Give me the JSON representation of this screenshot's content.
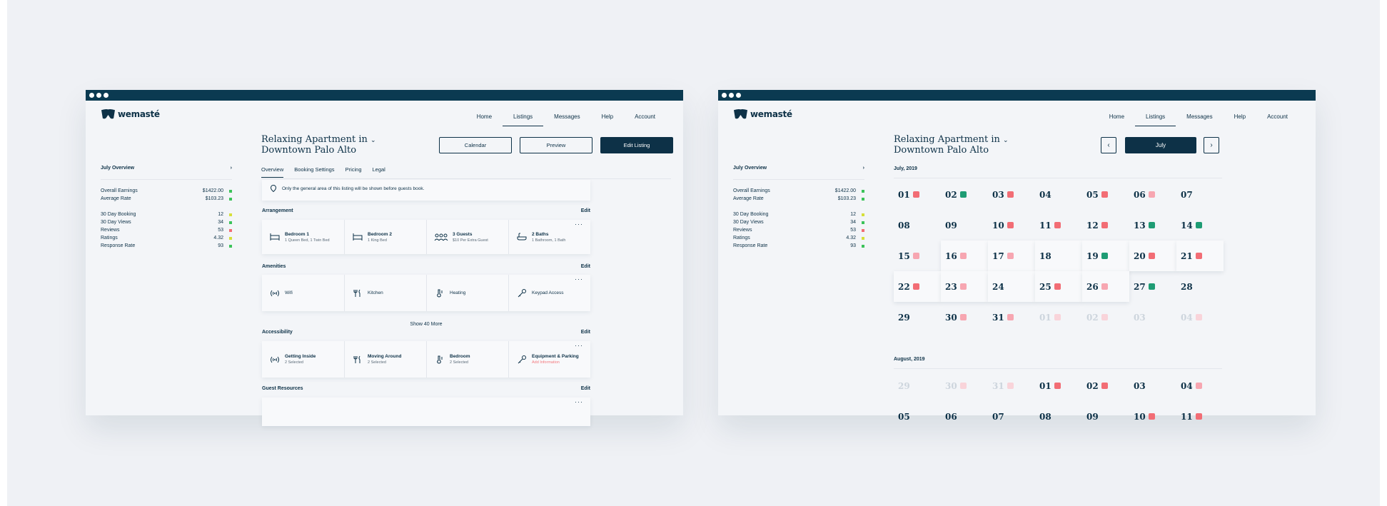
{
  "colors": {
    "navy": "#0d3147",
    "green": "#1e9c74",
    "red": "#f26d75",
    "pink": "#f7a6b1"
  },
  "brand": {
    "name": "wemasté"
  },
  "nav": [
    "Home",
    "Listings",
    "Messages",
    "Help",
    "Account"
  ],
  "sidebar": {
    "overview_title": "July Overview",
    "earnings": [
      {
        "label": "Overall Earnings",
        "value": "$1422.00"
      },
      {
        "label": "Average Rate",
        "value": "$103.23"
      }
    ],
    "stats": [
      {
        "label": "30 Day Booking",
        "value": "12",
        "icon": "calendar-icon",
        "status": "#d6df3a"
      },
      {
        "label": "30 Day Views",
        "value": "34",
        "icon": "eye-icon",
        "status": "#3cc35a"
      },
      {
        "label": "Reviews",
        "value": "53",
        "icon": "chat-icon",
        "status": "#f26d75"
      },
      {
        "label": "Ratings",
        "value": "4.32",
        "icon": "star-icon",
        "status": "#d6df3a"
      },
      {
        "label": "Response Rate",
        "value": "93",
        "icon": "check-icon",
        "status": "#3cc35a"
      }
    ]
  },
  "listing": {
    "title_line1": "Relaxing Apartment in",
    "title_line2": "Downtown Palo Alto",
    "buttons": {
      "calendar": "Calendar",
      "preview": "Preview",
      "edit": "Edit Listing"
    },
    "tabs": [
      "Overview",
      "Booking Settings",
      "Pricing",
      "Legal"
    ],
    "address_note": "Only the general area of this listing will be shown before guests book.",
    "edit_label": "Edit",
    "arrangement": {
      "heading": "Arrangement",
      "items": [
        {
          "title": "Bedroom 1",
          "sub": "1 Queen Bed, 1 Twin Bed"
        },
        {
          "title": "Bedroom 2",
          "sub": "1 King Bed"
        },
        {
          "title": "3 Guests",
          "sub": "$10 Per Extra Guest"
        },
        {
          "title": "2 Baths",
          "sub": "1 Bathroom, 1 Bath"
        }
      ]
    },
    "amenities": {
      "heading": "Amenities",
      "items": [
        "Wifi",
        "Kitchen",
        "Heating",
        "Keypad Access"
      ],
      "show_more": "Show 40 More"
    },
    "accessibility": {
      "heading": "Accessibility",
      "items": [
        {
          "title": "Getting Inside",
          "sub": "2 Selected"
        },
        {
          "title": "Moving Around",
          "sub": "2 Selected"
        },
        {
          "title": "Bedroom",
          "sub": "2 Selected"
        },
        {
          "title": "Equipment & Parking",
          "sub": "Add Information"
        }
      ]
    },
    "guest_resources": {
      "heading": "Guest Resources"
    }
  },
  "calendar": {
    "month_button": "July",
    "prev_icon": "chevron-left-icon",
    "next_icon": "chevron-right-icon",
    "july_label": "July, 2019",
    "august_label": "August, 2019",
    "july_days": [
      {
        "d": "01",
        "b": "red"
      },
      {
        "d": "02",
        "b": "green"
      },
      {
        "d": "03",
        "b": "red"
      },
      {
        "d": "04",
        "b": ""
      },
      {
        "d": "05",
        "b": "red"
      },
      {
        "d": "06",
        "b": "pink"
      },
      {
        "d": "07",
        "b": ""
      },
      {
        "d": "08",
        "b": ""
      },
      {
        "d": "09",
        "b": ""
      },
      {
        "d": "10",
        "b": "red"
      },
      {
        "d": "11",
        "b": "red"
      },
      {
        "d": "12",
        "b": "red"
      },
      {
        "d": "13",
        "b": "green"
      },
      {
        "d": "14",
        "b": "green"
      },
      {
        "d": "15",
        "b": "pink"
      },
      {
        "d": "16",
        "b": "pink"
      },
      {
        "d": "17",
        "b": "pink"
      },
      {
        "d": "18",
        "b": ""
      },
      {
        "d": "19",
        "b": "green"
      },
      {
        "d": "20",
        "b": "red"
      },
      {
        "d": "21",
        "b": "red"
      },
      {
        "d": "22",
        "b": "red"
      },
      {
        "d": "23",
        "b": "pink"
      },
      {
        "d": "24",
        "b": ""
      },
      {
        "d": "25",
        "b": "red"
      },
      {
        "d": "26",
        "b": "pink"
      },
      {
        "d": "27",
        "b": "green"
      },
      {
        "d": "28",
        "b": ""
      },
      {
        "d": "29",
        "b": ""
      },
      {
        "d": "30",
        "b": "pink"
      },
      {
        "d": "31",
        "b": "pink"
      },
      {
        "d": "01",
        "b": "faint"
      },
      {
        "d": "02",
        "b": "faint"
      },
      {
        "d": "03",
        "b": ""
      },
      {
        "d": "04",
        "b": "faint"
      }
    ],
    "august_days": [
      {
        "d": "29",
        "b": ""
      },
      {
        "d": "30",
        "b": "faint"
      },
      {
        "d": "31",
        "b": "faint"
      },
      {
        "d": "01",
        "b": "red"
      },
      {
        "d": "02",
        "b": "red"
      },
      {
        "d": "03",
        "b": ""
      },
      {
        "d": "04",
        "b": "pink"
      },
      {
        "d": "05",
        "b": ""
      },
      {
        "d": "06",
        "b": ""
      },
      {
        "d": "07",
        "b": ""
      },
      {
        "d": "08",
        "b": ""
      },
      {
        "d": "09",
        "b": ""
      },
      {
        "d": "10",
        "b": "red"
      },
      {
        "d": "11",
        "b": "red"
      }
    ]
  }
}
